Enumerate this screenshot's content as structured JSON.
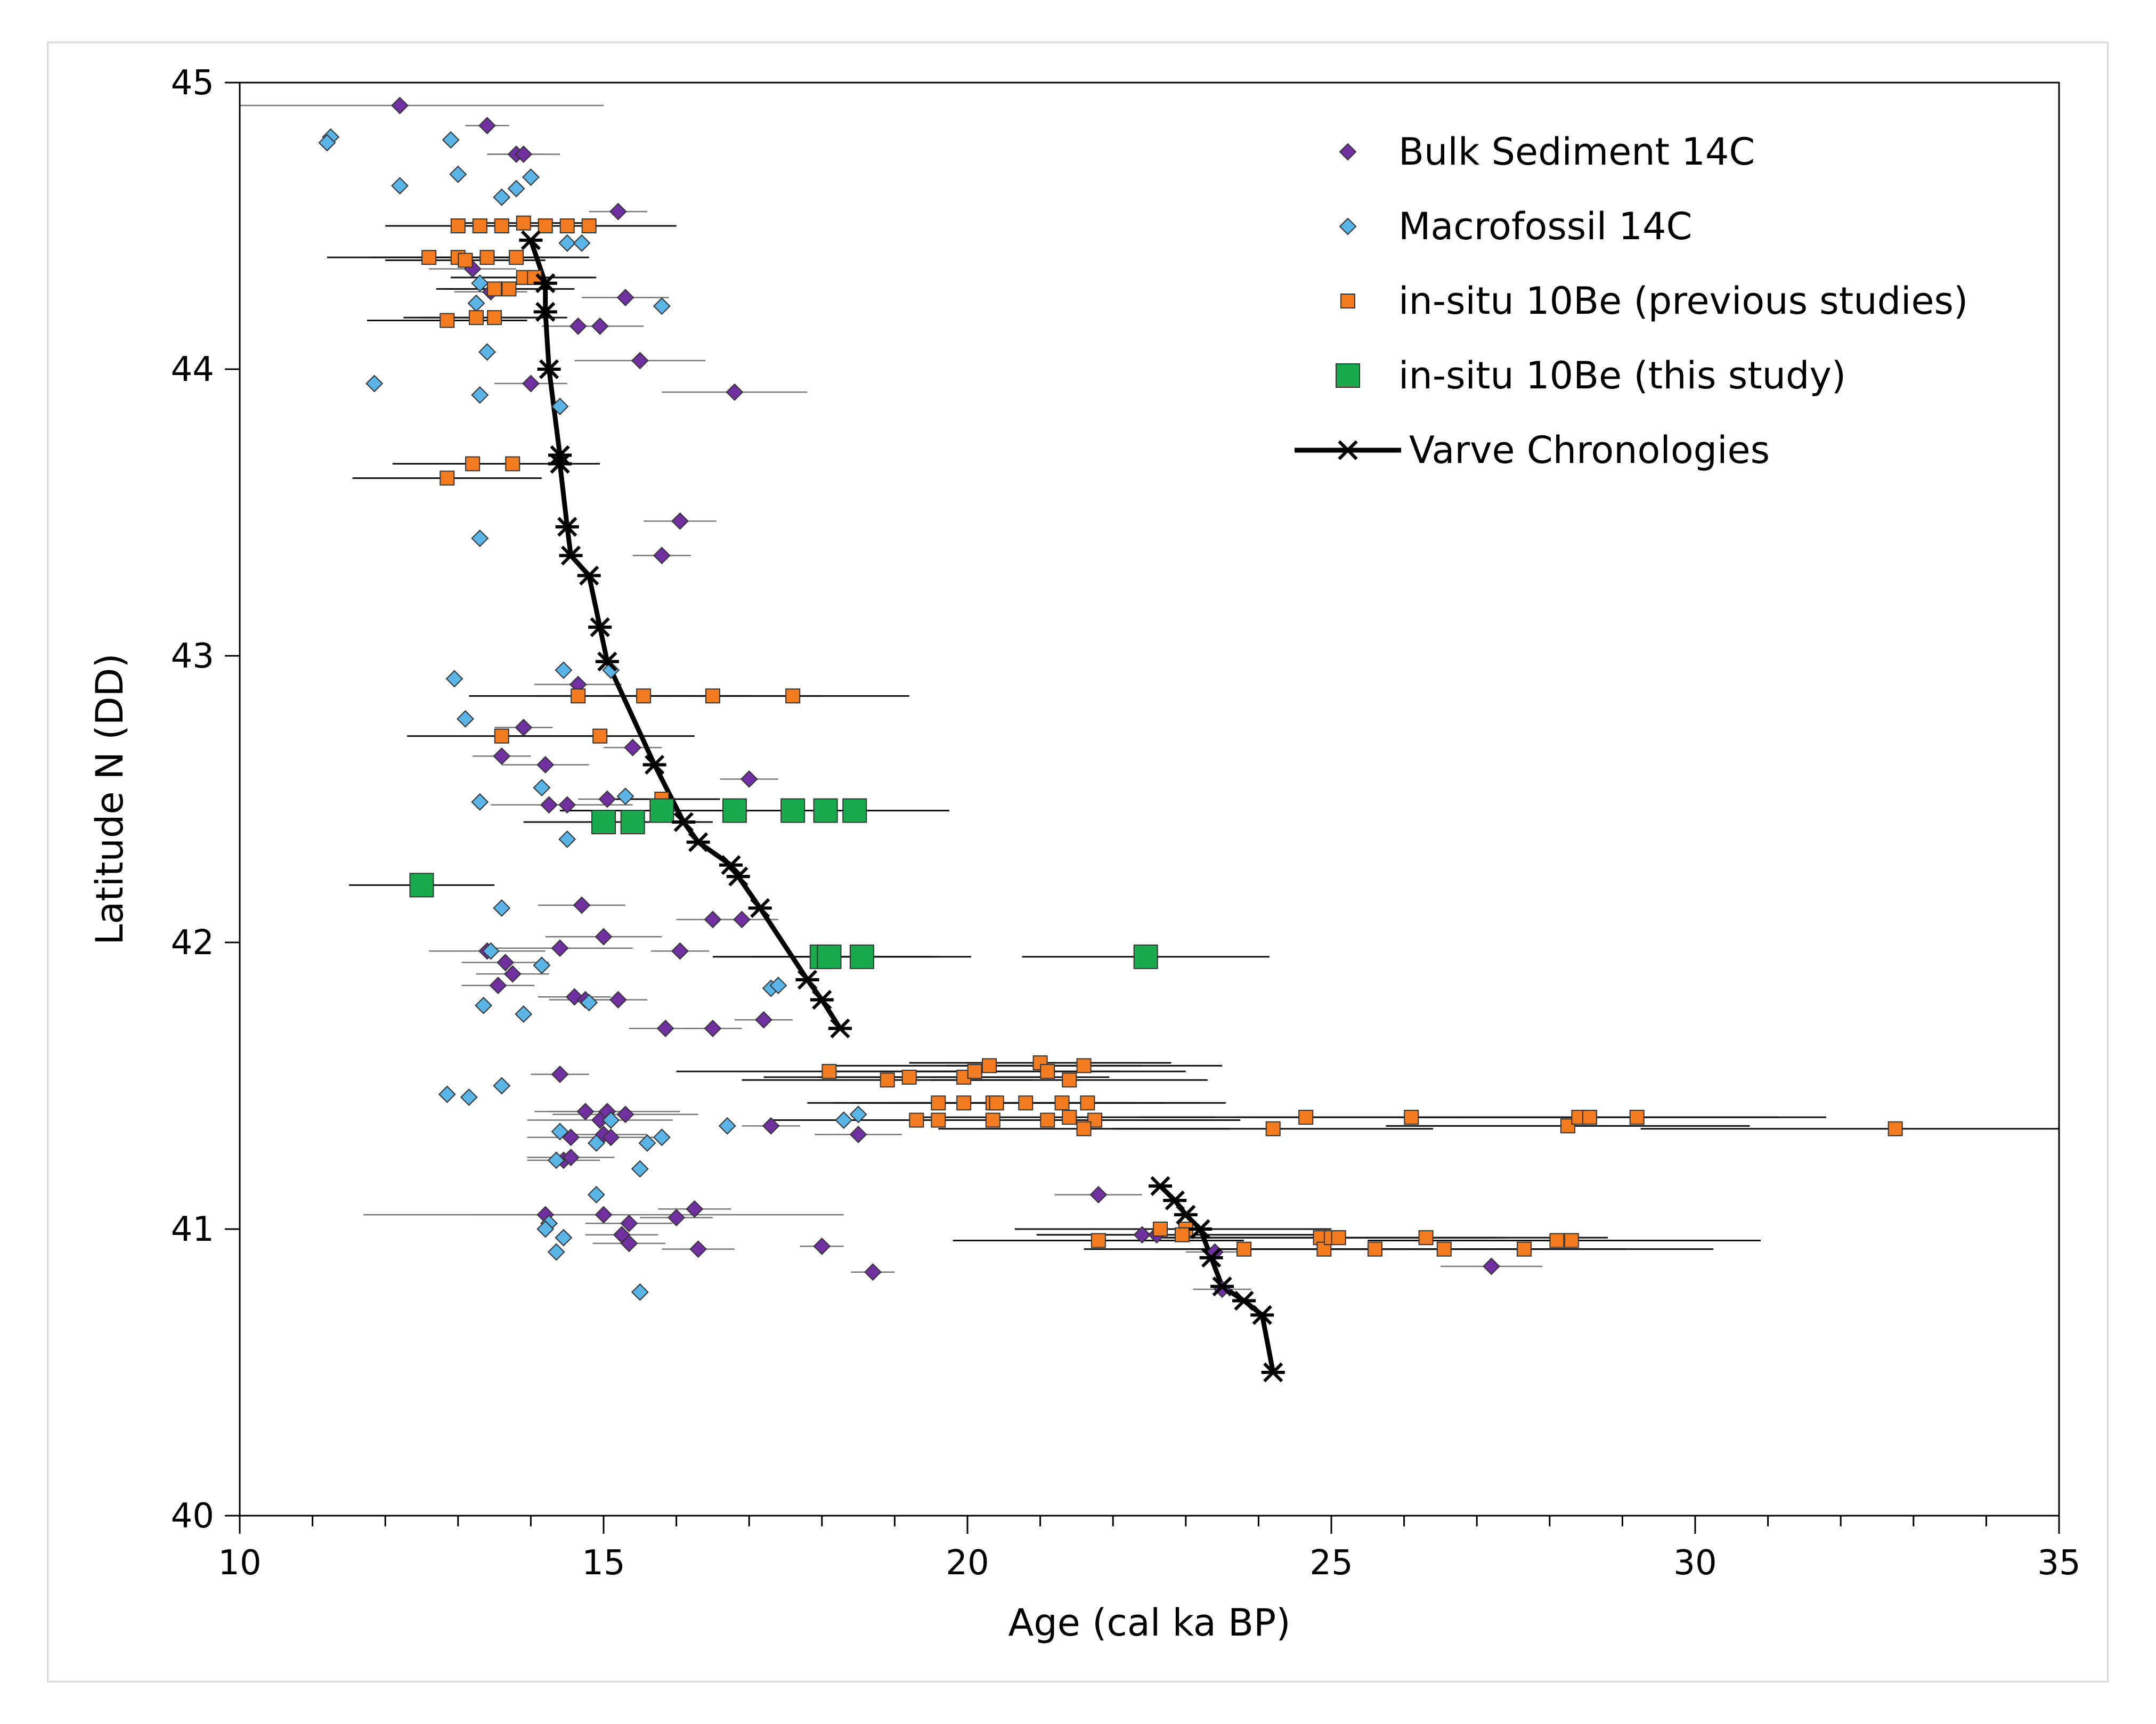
{
  "chart_data": {
    "type": "scatter",
    "title": "",
    "xlabel": "Age (cal ka BP)",
    "ylabel": "Latitude N (DD)",
    "xlim": [
      10,
      35
    ],
    "ylim": [
      40,
      45
    ],
    "xticks": [
      10,
      15,
      20,
      25,
      30,
      35
    ],
    "yticks": [
      40,
      41,
      42,
      43,
      44,
      45
    ],
    "grid": false,
    "legend_position": "top-right",
    "series": [
      {
        "name": "Bulk Sediment 14C",
        "marker": "diamond",
        "color": "#7030a0",
        "points": [
          [
            12.2,
            44.92
          ],
          [
            13.4,
            44.85
          ],
          [
            13.8,
            44.75
          ],
          [
            13.9,
            44.75
          ],
          [
            15.2,
            44.55
          ],
          [
            13.2,
            44.35
          ],
          [
            13.45,
            44.27
          ],
          [
            15.3,
            44.25
          ],
          [
            14.65,
            44.15
          ],
          [
            14.95,
            44.15
          ],
          [
            15.5,
            44.03
          ],
          [
            14.0,
            43.95
          ],
          [
            16.8,
            43.92
          ],
          [
            16.05,
            43.47
          ],
          [
            15.8,
            43.35
          ],
          [
            14.65,
            42.9
          ],
          [
            13.9,
            42.75
          ],
          [
            13.6,
            42.65
          ],
          [
            15.4,
            42.68
          ],
          [
            14.2,
            42.62
          ],
          [
            17.0,
            42.57
          ],
          [
            14.25,
            42.48
          ],
          [
            14.5,
            42.48
          ],
          [
            15.05,
            42.5
          ],
          [
            14.7,
            42.13
          ],
          [
            16.5,
            42.08
          ],
          [
            16.9,
            42.08
          ],
          [
            13.4,
            41.97
          ],
          [
            14.4,
            41.98
          ],
          [
            15.0,
            42.02
          ],
          [
            16.05,
            41.97
          ],
          [
            13.65,
            41.93
          ],
          [
            13.75,
            41.89
          ],
          [
            13.55,
            41.85
          ],
          [
            14.6,
            41.81
          ],
          [
            14.75,
            41.8
          ],
          [
            15.2,
            41.8
          ],
          [
            15.85,
            41.7
          ],
          [
            16.5,
            41.7
          ],
          [
            17.2,
            41.73
          ],
          [
            14.4,
            41.54
          ],
          [
            14.75,
            41.41
          ],
          [
            15.05,
            41.41
          ],
          [
            15.3,
            41.4
          ],
          [
            14.95,
            41.38
          ],
          [
            17.3,
            41.36
          ],
          [
            14.55,
            41.32
          ],
          [
            15.0,
            41.33
          ],
          [
            15.1,
            41.32
          ],
          [
            14.45,
            41.24
          ],
          [
            14.55,
            41.25
          ],
          [
            21.8,
            41.12
          ],
          [
            14.2,
            41.05
          ],
          [
            15.0,
            41.05
          ],
          [
            15.35,
            41.02
          ],
          [
            16.0,
            41.04
          ],
          [
            16.25,
            41.07
          ],
          [
            15.25,
            40.98
          ],
          [
            15.35,
            40.95
          ],
          [
            18.0,
            40.94
          ],
          [
            16.3,
            40.93
          ],
          [
            18.7,
            40.85
          ],
          [
            22.4,
            40.98
          ],
          [
            22.6,
            40.98
          ],
          [
            23.4,
            40.92
          ],
          [
            23.5,
            40.79
          ],
          [
            27.2,
            40.87
          ],
          [
            18.5,
            41.33
          ]
        ],
        "xerr": [
          [
            2.8,
            0.3,
            0.4,
            0.5,
            0.4,
            0.6,
            0.5,
            0.6,
            0.5,
            0.6,
            0.9,
            0.5,
            1.0,
            0.5,
            0.4,
            0.6,
            0.4,
            0.4,
            0.4,
            0.6,
            0.4,
            0.8,
            0.9,
            0.4,
            0.6,
            0.5,
            0.5,
            0.8,
            1.0,
            0.8,
            0.4,
            0.6,
            0.5,
            0.5,
            0.5,
            0.5,
            0.4,
            0.5,
            0.4,
            0.4,
            0.4,
            0.5,
            1.0,
            1.0,
            1.0,
            0.4,
            0.6,
            0.6,
            0.6,
            0.5,
            0.6,
            0.6,
            1.0,
            3.3,
            0.6,
            0.5,
            0.5,
            0.5,
            0.5,
            0.3,
            0.5,
            0.3,
            0.4,
            0.5,
            0.4,
            0.4,
            0.7,
            0.6
          ]
        ]
      },
      {
        "name": "Macrofossil 14C",
        "marker": "diamond",
        "color": "#5bb4e6",
        "points": [
          [
            11.25,
            44.81
          ],
          [
            11.2,
            44.79
          ],
          [
            12.9,
            44.8
          ],
          [
            13.0,
            44.68
          ],
          [
            14.0,
            44.67
          ],
          [
            12.2,
            44.64
          ],
          [
            13.8,
            44.63
          ],
          [
            13.6,
            44.6
          ],
          [
            14.5,
            44.44
          ],
          [
            14.7,
            44.44
          ],
          [
            13.3,
            44.3
          ],
          [
            15.8,
            44.22
          ],
          [
            13.25,
            44.23
          ],
          [
            13.4,
            44.06
          ],
          [
            11.85,
            43.95
          ],
          [
            13.3,
            43.91
          ],
          [
            14.4,
            43.87
          ],
          [
            13.3,
            43.41
          ],
          [
            14.45,
            42.95
          ],
          [
            15.1,
            42.95
          ],
          [
            12.95,
            42.92
          ],
          [
            13.1,
            42.78
          ],
          [
            14.15,
            42.54
          ],
          [
            15.3,
            42.51
          ],
          [
            13.3,
            42.49
          ],
          [
            14.5,
            42.36
          ],
          [
            13.6,
            42.12
          ],
          [
            13.45,
            41.97
          ],
          [
            14.15,
            41.92
          ],
          [
            13.35,
            41.78
          ],
          [
            14.8,
            41.79
          ],
          [
            13.9,
            41.75
          ],
          [
            17.3,
            41.84
          ],
          [
            17.4,
            41.85
          ],
          [
            13.6,
            41.5
          ],
          [
            12.85,
            41.47
          ],
          [
            13.15,
            41.46
          ],
          [
            18.5,
            41.4
          ],
          [
            18.3,
            41.38
          ],
          [
            16.7,
            41.36
          ],
          [
            15.1,
            41.38
          ],
          [
            14.4,
            41.34
          ],
          [
            14.9,
            41.3
          ],
          [
            15.6,
            41.3
          ],
          [
            15.8,
            41.32
          ],
          [
            14.35,
            41.24
          ],
          [
            15.5,
            41.21
          ],
          [
            14.9,
            41.12
          ],
          [
            14.25,
            41.02
          ],
          [
            14.2,
            41.0
          ],
          [
            14.45,
            40.97
          ],
          [
            14.35,
            40.92
          ],
          [
            15.5,
            40.78
          ]
        ]
      },
      {
        "name": "in-situ 10Be (previous studies)",
        "marker": "square",
        "color": "#f47c20",
        "points": [
          [
            13.0,
            44.5
          ],
          [
            13.3,
            44.5
          ],
          [
            13.6,
            44.5
          ],
          [
            13.9,
            44.51
          ],
          [
            14.2,
            44.5
          ],
          [
            14.5,
            44.5
          ],
          [
            14.8,
            44.5
          ],
          [
            12.6,
            44.39
          ],
          [
            13.0,
            44.39
          ],
          [
            13.1,
            44.38
          ],
          [
            13.4,
            44.39
          ],
          [
            13.8,
            44.39
          ],
          [
            13.9,
            44.32
          ],
          [
            14.05,
            44.32
          ],
          [
            13.7,
            44.28
          ],
          [
            13.5,
            44.28
          ],
          [
            12.85,
            44.17
          ],
          [
            13.25,
            44.18
          ],
          [
            13.5,
            44.18
          ],
          [
            13.2,
            43.67
          ],
          [
            13.75,
            43.67
          ],
          [
            12.85,
            43.62
          ],
          [
            14.65,
            42.86
          ],
          [
            15.55,
            42.86
          ],
          [
            16.5,
            42.86
          ],
          [
            17.6,
            42.86
          ],
          [
            13.6,
            42.72
          ],
          [
            14.95,
            42.72
          ],
          [
            15.8,
            42.5
          ],
          [
            18.1,
            41.55
          ],
          [
            18.9,
            41.52
          ],
          [
            19.2,
            41.53
          ],
          [
            19.95,
            41.53
          ],
          [
            20.1,
            41.55
          ],
          [
            20.3,
            41.57
          ],
          [
            21.0,
            41.58
          ],
          [
            21.1,
            41.55
          ],
          [
            21.4,
            41.52
          ],
          [
            21.6,
            41.57
          ],
          [
            19.6,
            41.44
          ],
          [
            19.95,
            41.44
          ],
          [
            20.35,
            41.44
          ],
          [
            20.4,
            41.44
          ],
          [
            20.8,
            41.44
          ],
          [
            21.3,
            41.44
          ],
          [
            21.65,
            41.44
          ],
          [
            19.3,
            41.38
          ],
          [
            19.6,
            41.38
          ],
          [
            20.35,
            41.38
          ],
          [
            21.1,
            41.38
          ],
          [
            21.4,
            41.39
          ],
          [
            21.75,
            41.38
          ],
          [
            21.6,
            41.35
          ],
          [
            24.2,
            41.35
          ],
          [
            24.65,
            41.39
          ],
          [
            26.1,
            41.39
          ],
          [
            28.25,
            41.36
          ],
          [
            28.4,
            41.39
          ],
          [
            28.55,
            41.39
          ],
          [
            29.2,
            41.39
          ],
          [
            32.75,
            41.35
          ],
          [
            22.65,
            41.0
          ],
          [
            23.0,
            41.0
          ],
          [
            22.95,
            40.98
          ],
          [
            21.8,
            40.96
          ],
          [
            23.8,
            40.93
          ],
          [
            24.85,
            40.97
          ],
          [
            24.9,
            40.93
          ],
          [
            25.0,
            40.97
          ],
          [
            25.1,
            40.97
          ],
          [
            25.6,
            40.93
          ],
          [
            26.3,
            40.97
          ],
          [
            26.55,
            40.93
          ],
          [
            27.65,
            40.93
          ],
          [
            28.1,
            40.96
          ],
          [
            28.3,
            40.96
          ]
        ],
        "xerr": [
          [
            1.0,
            0.9,
            1.0,
            1.0,
            1.0,
            1.0,
            1.2,
            1.4,
            1.2,
            1.1,
            1.0,
            1.0,
            1.0,
            0.8,
            0.9,
            0.8,
            1.1,
            1.0,
            1.0,
            1.1,
            1.2,
            1.3,
            1.5,
            1.5,
            1.5,
            1.6,
            1.3,
            1.3,
            0.8,
            2.1,
            2.0,
            2.0,
            2.0,
            2.0,
            2.1,
            1.8,
            1.9,
            1.9,
            1.9,
            1.8,
            1.8,
            1.9,
            1.9,
            1.9,
            1.9,
            1.9,
            2.0,
            2.0,
            2.0,
            2.0,
            2.0,
            2.0,
            2.0,
            2.2,
            2.3,
            2.4,
            2.5,
            2.5,
            2.6,
            2.6,
            3.5,
            2.0,
            2.0,
            2.0,
            2.0,
            2.2,
            2.3,
            2.3,
            2.3,
            2.3,
            2.4,
            2.5,
            2.5,
            2.6,
            2.6,
            2.6
          ]
        ]
      },
      {
        "name": "in-situ 10Be (this study)",
        "marker": "square-large",
        "color": "#1aaa4e",
        "points": [
          [
            15.8,
            42.46
          ],
          [
            16.8,
            42.46
          ],
          [
            17.6,
            42.46
          ],
          [
            18.05,
            42.46
          ],
          [
            18.45,
            42.46
          ],
          [
            15.0,
            42.42
          ],
          [
            15.4,
            42.42
          ],
          [
            12.5,
            42.2
          ],
          [
            18.0,
            41.95
          ],
          [
            18.1,
            41.95
          ],
          [
            18.55,
            41.95
          ],
          [
            22.45,
            41.95
          ]
        ],
        "xerr": [
          [
            1.4,
            1.3,
            1.3,
            1.4,
            1.3,
            1.1,
            1.1,
            1.0,
            1.5,
            1.5,
            1.5,
            1.7
          ]
        ]
      },
      {
        "name": "Varve Chronologies",
        "marker": "star-line",
        "color": "#000000",
        "points": [
          [
            14.0,
            44.45
          ],
          [
            14.2,
            44.3
          ],
          [
            14.2,
            44.2
          ],
          [
            14.25,
            44.0
          ],
          [
            14.4,
            43.7
          ],
          [
            14.4,
            43.67
          ],
          [
            14.5,
            43.45
          ],
          [
            14.55,
            43.35
          ],
          [
            14.8,
            43.28
          ],
          [
            14.95,
            43.1
          ],
          [
            15.05,
            42.98
          ],
          [
            15.7,
            42.62
          ],
          [
            16.1,
            42.42
          ],
          [
            16.3,
            42.35
          ],
          [
            16.75,
            42.27
          ],
          [
            16.85,
            42.23
          ],
          [
            17.15,
            42.12
          ],
          [
            17.8,
            41.87
          ],
          [
            18.0,
            41.8
          ],
          [
            18.25,
            41.7
          ]
        ],
        "points_2": [
          [
            22.65,
            41.15
          ],
          [
            22.85,
            41.1
          ],
          [
            23.0,
            41.05
          ],
          [
            23.2,
            41.0
          ],
          [
            23.35,
            40.9
          ],
          [
            23.5,
            40.8
          ],
          [
            23.8,
            40.75
          ],
          [
            24.05,
            40.7
          ],
          [
            24.2,
            40.5
          ]
        ]
      }
    ],
    "legend": [
      "Bulk Sediment 14C",
      "Macrofossil 14C",
      "in-situ 10Be (previous studies)",
      "in-situ 10Be (this study)",
      "Varve Chronologies"
    ]
  }
}
